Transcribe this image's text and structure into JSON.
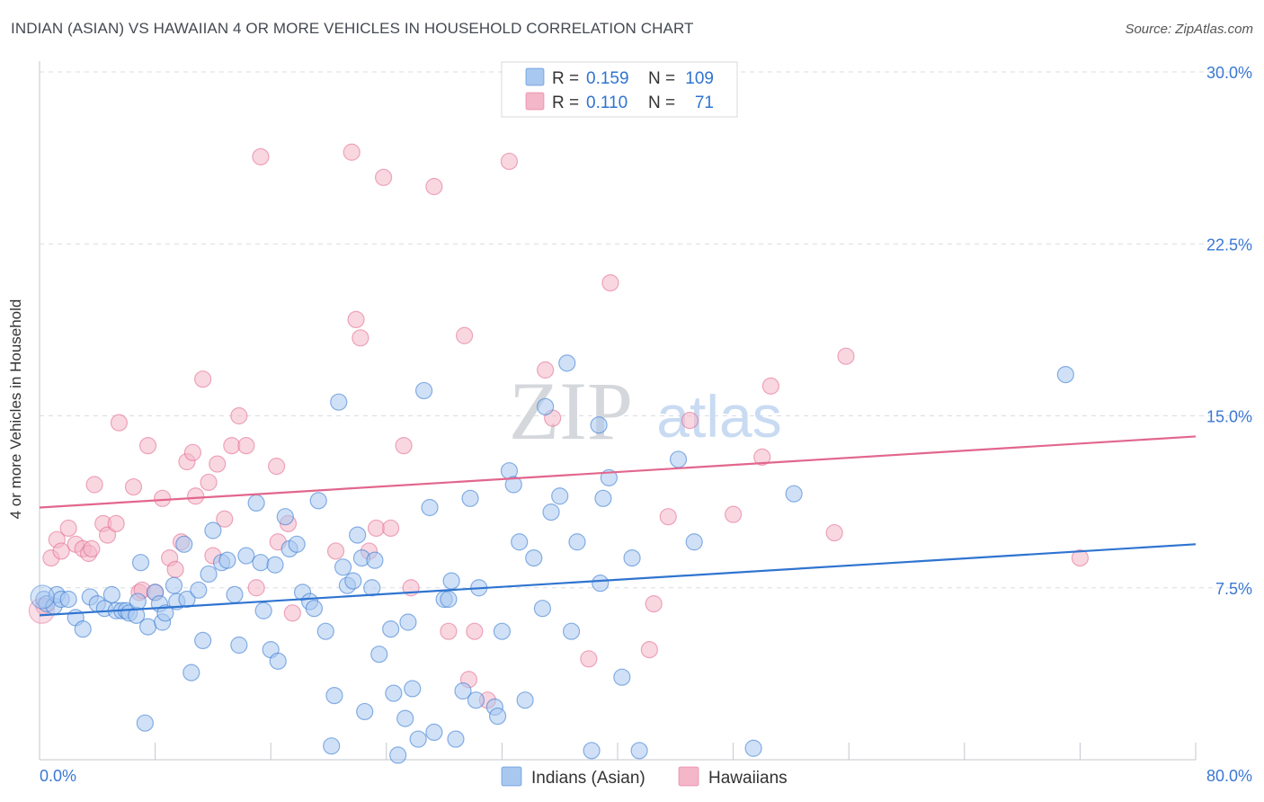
{
  "title": "INDIAN (ASIAN) VS HAWAIIAN 4 OR MORE VEHICLES IN HOUSEHOLD CORRELATION CHART",
  "source": "Source: ZipAtlas.com",
  "watermark": {
    "zip": "ZIP",
    "atlas": "atlas"
  },
  "colors": {
    "blue": "#2f74d0",
    "blue_fill": "#a9c8f0",
    "pink": "#e2668d",
    "pink_fill": "#f4b6c9",
    "axis_value": "#3a78d4",
    "grid": "#d9dde3"
  },
  "legend": {
    "rows": [
      {
        "r_label": "R =",
        "r_value": "0.159",
        "n_label": "N =",
        "n_value": "109"
      },
      {
        "r_label": "R =",
        "r_value": "0.110",
        "n_label": "N =",
        "n_value": "71"
      }
    ]
  },
  "bottom_legend": [
    "Indians (Asian)",
    "Hawaiians"
  ],
  "chart_data": {
    "type": "scatter",
    "title": "INDIAN (ASIAN) VS HAWAIIAN 4 OR MORE VEHICLES IN HOUSEHOLD CORRELATION CHART",
    "xlabel": "",
    "ylabel": "4 or more Vehicles in Household",
    "xlim": [
      0,
      80
    ],
    "ylim": [
      0,
      30
    ],
    "x_tick_labels": [
      "0.0%",
      "80.0%"
    ],
    "y_ticks": [
      7.5,
      15.0,
      22.5,
      30.0
    ],
    "y_tick_labels": [
      "7.5%",
      "15.0%",
      "22.5%",
      "30.0%"
    ],
    "grid": true,
    "legend_position": "top-center",
    "series": [
      {
        "name": "Indians (Asian)",
        "color": "#2f74d0",
        "trend": {
          "x": [
            0,
            80
          ],
          "y": [
            6.3,
            9.4
          ]
        },
        "points": [
          [
            0.3,
            7.0
          ],
          [
            0.5,
            6.8
          ],
          [
            1.0,
            6.7
          ],
          [
            1.2,
            7.2
          ],
          [
            1.5,
            7.0
          ],
          [
            2.0,
            7.0
          ],
          [
            2.5,
            6.2
          ],
          [
            3.0,
            5.7
          ],
          [
            3.5,
            7.1
          ],
          [
            4.0,
            6.8
          ],
          [
            4.5,
            6.6
          ],
          [
            5.0,
            7.2
          ],
          [
            5.3,
            6.5
          ],
          [
            5.7,
            6.5
          ],
          [
            6.0,
            6.5
          ],
          [
            6.2,
            6.4
          ],
          [
            6.7,
            6.3
          ],
          [
            6.8,
            6.9
          ],
          [
            7.0,
            8.6
          ],
          [
            7.5,
            5.8
          ],
          [
            7.3,
            1.6
          ],
          [
            8.0,
            7.3
          ],
          [
            8.3,
            6.8
          ],
          [
            8.5,
            6.0
          ],
          [
            8.7,
            6.4
          ],
          [
            9.3,
            7.6
          ],
          [
            9.5,
            6.9
          ],
          [
            10.0,
            9.4
          ],
          [
            10.2,
            7.0
          ],
          [
            10.5,
            3.8
          ],
          [
            11.0,
            7.4
          ],
          [
            11.3,
            5.2
          ],
          [
            11.7,
            8.1
          ],
          [
            12.0,
            10.0
          ],
          [
            12.6,
            8.6
          ],
          [
            13.0,
            8.7
          ],
          [
            13.5,
            7.2
          ],
          [
            13.8,
            5.0
          ],
          [
            14.3,
            8.9
          ],
          [
            15.0,
            11.2
          ],
          [
            15.3,
            8.6
          ],
          [
            15.5,
            6.5
          ],
          [
            16.0,
            4.8
          ],
          [
            16.3,
            8.5
          ],
          [
            16.5,
            4.3
          ],
          [
            17.0,
            10.6
          ],
          [
            17.3,
            9.2
          ],
          [
            17.8,
            9.4
          ],
          [
            18.2,
            7.3
          ],
          [
            18.7,
            6.9
          ],
          [
            19.0,
            6.6
          ],
          [
            19.3,
            11.3
          ],
          [
            19.8,
            5.6
          ],
          [
            20.2,
            0.6
          ],
          [
            20.4,
            2.8
          ],
          [
            20.7,
            15.6
          ],
          [
            21.0,
            8.4
          ],
          [
            21.3,
            7.6
          ],
          [
            21.7,
            7.8
          ],
          [
            22.0,
            9.8
          ],
          [
            22.3,
            8.8
          ],
          [
            22.5,
            2.1
          ],
          [
            23.0,
            7.5
          ],
          [
            23.2,
            8.7
          ],
          [
            23.5,
            4.6
          ],
          [
            24.3,
            5.7
          ],
          [
            24.5,
            2.9
          ],
          [
            24.8,
            0.2
          ],
          [
            25.3,
            1.8
          ],
          [
            25.5,
            6.0
          ],
          [
            25.8,
            3.1
          ],
          [
            26.2,
            0.9
          ],
          [
            26.6,
            16.1
          ],
          [
            27.0,
            11.0
          ],
          [
            27.3,
            1.2
          ],
          [
            28.0,
            7.0
          ],
          [
            28.3,
            7.0
          ],
          [
            28.5,
            7.8
          ],
          [
            28.8,
            0.9
          ],
          [
            29.3,
            3.0
          ],
          [
            29.8,
            11.4
          ],
          [
            30.2,
            2.6
          ],
          [
            30.4,
            7.5
          ],
          [
            31.5,
            2.3
          ],
          [
            31.7,
            1.9
          ],
          [
            32.0,
            5.6
          ],
          [
            32.5,
            12.6
          ],
          [
            32.8,
            12.0
          ],
          [
            33.2,
            9.5
          ],
          [
            33.6,
            2.6
          ],
          [
            34.2,
            8.8
          ],
          [
            34.8,
            6.6
          ],
          [
            35.0,
            15.4
          ],
          [
            35.4,
            10.8
          ],
          [
            36.0,
            11.5
          ],
          [
            36.5,
            17.3
          ],
          [
            36.8,
            5.6
          ],
          [
            37.2,
            9.5
          ],
          [
            38.2,
            0.4
          ],
          [
            38.7,
            14.6
          ],
          [
            38.8,
            7.7
          ],
          [
            39.0,
            11.4
          ],
          [
            39.4,
            12.3
          ],
          [
            40.3,
            3.6
          ],
          [
            41.0,
            8.8
          ],
          [
            41.5,
            0.4
          ],
          [
            44.2,
            13.1
          ],
          [
            45.3,
            9.5
          ],
          [
            49.4,
            0.5
          ],
          [
            52.2,
            11.6
          ],
          [
            71.0,
            16.8
          ]
        ]
      },
      {
        "name": "Hawaiians",
        "color": "#e2668d",
        "trend": {
          "x": [
            0,
            80
          ],
          "y": [
            11.0,
            14.1
          ]
        },
        "points": [
          [
            0.3,
            6.7
          ],
          [
            0.8,
            8.8
          ],
          [
            1.2,
            9.6
          ],
          [
            1.5,
            9.1
          ],
          [
            2.0,
            10.1
          ],
          [
            2.5,
            9.4
          ],
          [
            3.0,
            9.2
          ],
          [
            3.4,
            9.0
          ],
          [
            3.8,
            12.0
          ],
          [
            4.4,
            10.3
          ],
          [
            4.7,
            9.8
          ],
          [
            5.3,
            10.3
          ],
          [
            5.5,
            14.7
          ],
          [
            6.5,
            11.9
          ],
          [
            6.9,
            7.3
          ],
          [
            7.1,
            7.4
          ],
          [
            7.5,
            13.7
          ],
          [
            8.5,
            11.4
          ],
          [
            9.0,
            8.8
          ],
          [
            9.4,
            8.3
          ],
          [
            9.8,
            9.5
          ],
          [
            10.2,
            13.0
          ],
          [
            10.6,
            13.4
          ],
          [
            10.8,
            11.5
          ],
          [
            11.3,
            16.6
          ],
          [
            11.7,
            12.1
          ],
          [
            12.0,
            8.9
          ],
          [
            12.3,
            12.9
          ],
          [
            12.8,
            10.5
          ],
          [
            13.3,
            13.7
          ],
          [
            13.8,
            15.0
          ],
          [
            14.3,
            13.7
          ],
          [
            15.0,
            7.5
          ],
          [
            15.3,
            26.3
          ],
          [
            16.4,
            12.8
          ],
          [
            16.5,
            9.5
          ],
          [
            17.2,
            10.3
          ],
          [
            17.5,
            6.4
          ],
          [
            20.5,
            9.1
          ],
          [
            21.6,
            26.5
          ],
          [
            21.9,
            19.2
          ],
          [
            22.2,
            18.4
          ],
          [
            22.8,
            9.1
          ],
          [
            23.3,
            10.1
          ],
          [
            23.8,
            25.4
          ],
          [
            24.3,
            10.1
          ],
          [
            25.2,
            13.7
          ],
          [
            25.7,
            7.5
          ],
          [
            27.3,
            25.0
          ],
          [
            28.3,
            5.6
          ],
          [
            29.4,
            18.5
          ],
          [
            29.7,
            3.5
          ],
          [
            30.1,
            5.6
          ],
          [
            31.0,
            2.6
          ],
          [
            32.5,
            26.1
          ],
          [
            35.0,
            17.0
          ],
          [
            35.5,
            14.9
          ],
          [
            38.0,
            4.4
          ],
          [
            39.5,
            20.8
          ],
          [
            42.2,
            4.8
          ],
          [
            42.5,
            6.8
          ],
          [
            43.5,
            10.6
          ],
          [
            45.0,
            14.8
          ],
          [
            48.0,
            10.7
          ],
          [
            50.0,
            13.2
          ],
          [
            50.6,
            16.3
          ],
          [
            55.0,
            9.9
          ],
          [
            55.8,
            17.6
          ],
          [
            72.0,
            8.8
          ],
          [
            3.6,
            9.2
          ],
          [
            8.0,
            7.3
          ]
        ]
      }
    ]
  }
}
